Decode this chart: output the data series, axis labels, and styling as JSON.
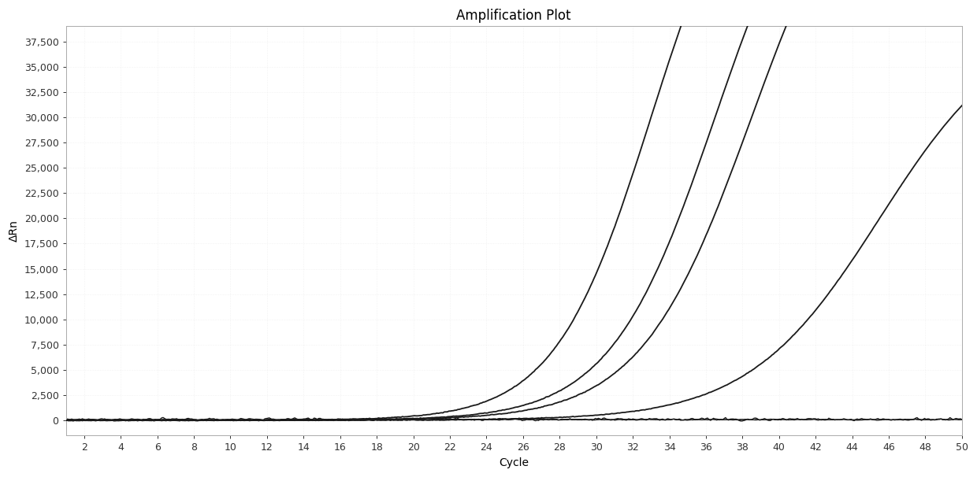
{
  "title": "Amplification Plot",
  "xlabel": "Cycle",
  "ylabel": "ΔRn",
  "xlim": [
    1,
    50
  ],
  "ylim": [
    -1500,
    39000
  ],
  "xticks": [
    2,
    4,
    6,
    8,
    10,
    12,
    14,
    16,
    18,
    20,
    22,
    24,
    26,
    28,
    30,
    32,
    34,
    36,
    38,
    40,
    42,
    44,
    46,
    48,
    50
  ],
  "yticks": [
    0,
    2500,
    5000,
    7500,
    10000,
    12500,
    15000,
    17500,
    20000,
    22500,
    25000,
    27500,
    30000,
    32500,
    35000,
    37500
  ],
  "ytick_labels": [
    "0",
    "2,500",
    "5,000",
    "7,500",
    "10,000",
    "12,500",
    "15,000",
    "17,500",
    "20,000",
    "22,500",
    "25,000",
    "27,500",
    "30,000",
    "32,500",
    "35,000",
    "37,500"
  ],
  "background_color": "#ffffff",
  "line_color": "#1a1a1a",
  "grid_color": "#d8d8d8",
  "title_fontsize": 12,
  "label_fontsize": 10,
  "tick_fontsize": 9,
  "curves": [
    {
      "L": 60000,
      "k": 0.38,
      "x0": 33.0,
      "noise_seed": 1
    },
    {
      "L": 60000,
      "k": 0.35,
      "x0": 36.5,
      "noise_seed": 2
    },
    {
      "L": 60000,
      "k": 0.33,
      "x0": 38.5,
      "noise_seed": 3
    },
    {
      "L": 40000,
      "k": 0.28,
      "x0": 45.5,
      "noise_seed": 4
    }
  ],
  "flat_lines": [
    {
      "level": 80,
      "noise_scale": 55,
      "noise_seed": 10
    },
    {
      "level": 70,
      "noise_scale": 45,
      "noise_seed": 20
    }
  ]
}
